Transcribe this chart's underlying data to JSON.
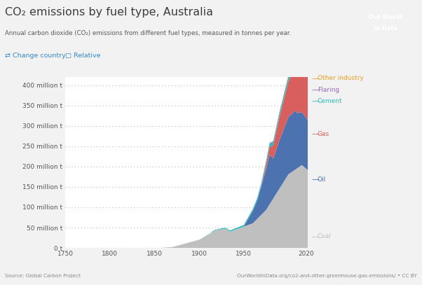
{
  "title": "CO₂ emissions by fuel type, Australia",
  "subtitle": "Annual carbon dioxide (CO₂) emissions from different fuel types, measured in tonnes per year.",
  "source_left": "Source: Global Carbon Project",
  "source_right": "OurWorldInData.org/co2-and-other-greenhouse-gas-emissions/ • CC BY",
  "xlim": [
    1750,
    2022
  ],
  "ylim": [
    0,
    420000000
  ],
  "yticks": [
    0,
    50000000,
    100000000,
    150000000,
    200000000,
    250000000,
    300000000,
    350000000,
    400000000
  ],
  "ytick_labels": [
    "0 t",
    "50 million t",
    "100 million t",
    "150 million t",
    "200 million t",
    "250 million t",
    "300 million t",
    "350 million t",
    "400 million t"
  ],
  "xticks": [
    1750,
    1800,
    1850,
    1900,
    1950,
    2020
  ],
  "colors": {
    "Coal": "#C0BFBF",
    "Oil": "#4C72B0",
    "Gas": "#D95F5F",
    "Cement": "#2EBBBB",
    "Flaring": "#9966BB",
    "Other industry": "#E8A020"
  },
  "legend_labels": [
    "Other industry",
    "Flaring",
    "Cement",
    "Gas",
    "Oil",
    "Coal"
  ],
  "legend_colors": [
    "#E8A020",
    "#9966BB",
    "#2EBBBB",
    "#D95F5F",
    "#4C72B0",
    "#C0BFBF"
  ],
  "background_color": "#F2F2F2",
  "plot_background": "#FFFFFF",
  "grid_color": "#BBBBBB",
  "owid_box_bg": "#1a3a5c",
  "title_color": "#3d3d3d",
  "subtitle_color": "#5a5a5a",
  "controls_color": "#3388CC"
}
